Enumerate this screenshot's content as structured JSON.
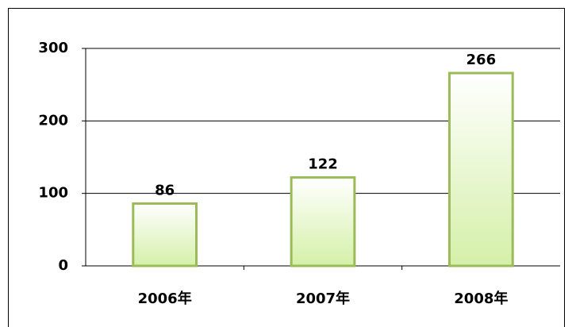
{
  "chart_data": {
    "type": "bar",
    "categories": [
      "2006年",
      "2007年",
      "2008年"
    ],
    "values": [
      86,
      122,
      266
    ],
    "color": "#9bbb59",
    "ylim": [
      0,
      300
    ],
    "yticks": [
      0,
      100,
      200,
      300
    ],
    "grid": true
  }
}
